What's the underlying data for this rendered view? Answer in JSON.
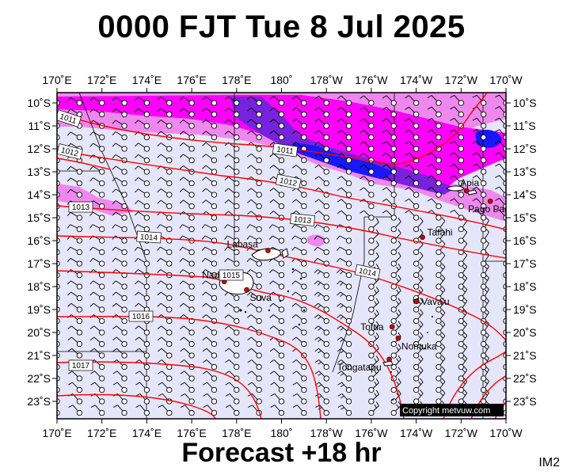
{
  "header": {
    "title": "0000 FJT Tue 8 Jul 2025",
    "subtitle": "Forecast +18 hr",
    "map_code": "IM2"
  },
  "map": {
    "longitude_labels": [
      "170˚E",
      "172˚E",
      "174˚E",
      "176˚E",
      "178˚E",
      "180˚",
      "178˚W",
      "176˚W",
      "174˚W",
      "172˚W",
      "170˚W"
    ],
    "latitude_labels": [
      "10˚S",
      "11˚S",
      "12˚S",
      "13˚S",
      "14˚S",
      "15˚S",
      "16˚S",
      "17˚S",
      "18˚S",
      "19˚S",
      "20˚S",
      "21˚S",
      "22˚S",
      "23˚S"
    ],
    "isobar_labels": [
      "1011",
      "1011",
      "1012",
      "1012",
      "1013",
      "1013",
      "1014",
      "1014",
      "1015",
      "1016",
      "1017"
    ],
    "places": [
      {
        "name": "Labasa",
        "lon": 179.4,
        "lat": -16.43
      },
      {
        "name": "Nadi",
        "lon": 177.45,
        "lat": -17.78
      },
      {
        "name": "Suva",
        "lon": 178.45,
        "lat": -18.14
      },
      {
        "name": "Apia",
        "lon": -171.76,
        "lat": -13.83
      },
      {
        "name": "Pago Pago",
        "lon": -170.7,
        "lat": -14.28
      },
      {
        "name": "Tafahi",
        "lon": -173.72,
        "lat": -15.85
      },
      {
        "name": "Vava'u",
        "lon": -173.98,
        "lat": -18.65
      },
      {
        "name": "Tofua",
        "lon": -175.07,
        "lat": -19.75
      },
      {
        "name": "Nomuka",
        "lon": -174.8,
        "lat": -20.25
      },
      {
        "name": "Tongatapu",
        "lon": -175.2,
        "lat": -21.17
      }
    ],
    "copyright": "Copyright metvuw.com",
    "colors": {
      "background": "#e6e6fa",
      "rain_light": "#ee88ee",
      "rain_medium": "#ff00ff",
      "rain_heavy": "#6600cc",
      "rain_intense": "#1010ff",
      "isobar": "#ff0000",
      "place_marker": "#cc0000",
      "land": "#ffffff"
    }
  }
}
